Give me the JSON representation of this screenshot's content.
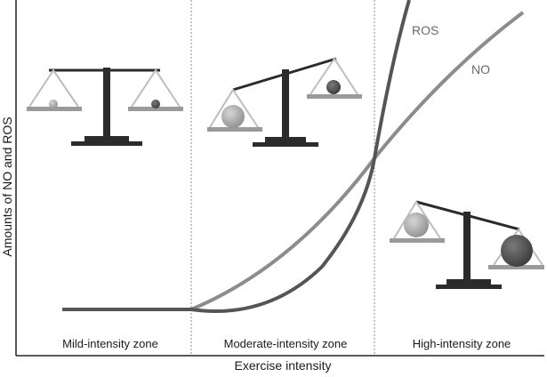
{
  "diagram": {
    "axis": {
      "x_title": "Exercise intensity",
      "y_title": "Amounts of NO and ROS"
    },
    "zones": [
      {
        "label": "Mild-intensity zone"
      },
      {
        "label": "Moderate-intensity zone"
      },
      {
        "label": "High-intensity zone"
      }
    ],
    "curves": [
      {
        "name": "ROS",
        "color": "#555555"
      },
      {
        "name": "NO",
        "color": "#8c8c8c"
      }
    ],
    "balances": [
      {
        "zone": "mild",
        "state": "level",
        "left_ball": "small-light",
        "right_ball": "small-dark"
      },
      {
        "zone": "moderate",
        "state": "left-heavy",
        "left_ball": "large-light",
        "right_ball": "medium-dark"
      },
      {
        "zone": "high",
        "state": "right-heavy",
        "left_ball": "medium-light",
        "right_ball": "large-dark"
      }
    ],
    "colors": {
      "ros_ball": "#4a4a4a",
      "no_ball": "#9a9a9a",
      "divider": "#888888",
      "axis": "#222222"
    }
  }
}
